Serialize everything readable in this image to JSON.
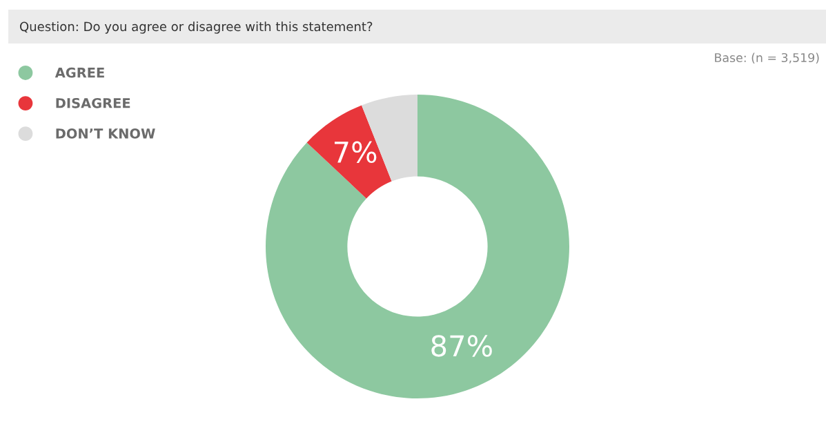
{
  "chart_data": {
    "type": "donut",
    "title": "Question: Do you agree or disagree with this statement?",
    "annotations": [
      "Base: (n = 3,519)"
    ],
    "categories": [
      "AGREE",
      "DISAGREE",
      "DON’T KNOW"
    ],
    "values": [
      87,
      7,
      6
    ],
    "colors": [
      "#8dc8a0",
      "#e8363b",
      "#dcdcdc"
    ],
    "value_labels": [
      "87%",
      "7%",
      null
    ],
    "legend": "top left"
  }
}
